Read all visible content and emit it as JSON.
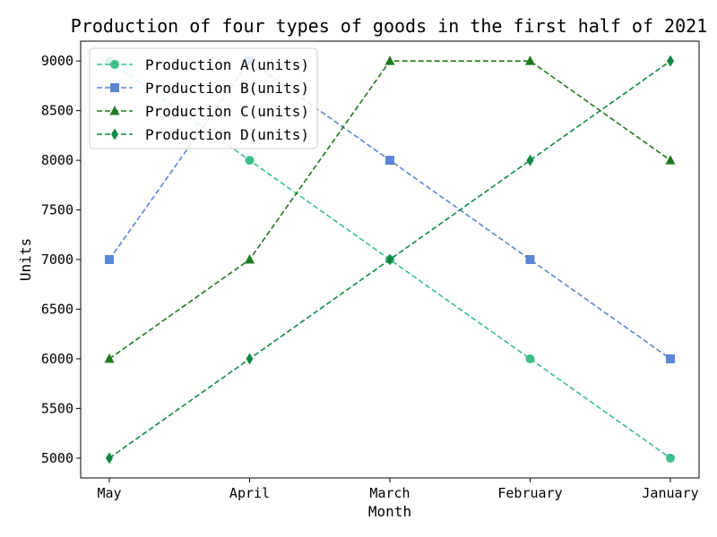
{
  "chart_data": {
    "type": "line",
    "title": "Production of four types of goods in the first half of 2021",
    "xlabel": "Month",
    "ylabel": "Units",
    "categories": [
      "May",
      "April",
      "March",
      "February",
      "January"
    ],
    "ylim": [
      4800,
      9200
    ],
    "yticks": [
      5000,
      5500,
      6000,
      6500,
      7000,
      7500,
      8000,
      8500,
      9000
    ],
    "grid": false,
    "legend_position": "upper-left",
    "series": [
      {
        "name": "Production A(units)",
        "values": [
          9000,
          8000,
          7000,
          6000,
          5000
        ],
        "color": "#3cbf8a",
        "marker": "circle",
        "line_style": "dashed"
      },
      {
        "name": "Production B(units)",
        "values": [
          7000,
          9000,
          8000,
          7000,
          6000
        ],
        "color": "#5b86d4",
        "marker": "square",
        "line_style": "dashed"
      },
      {
        "name": "Production C(units)",
        "values": [
          6000,
          7000,
          9000,
          9000,
          8000
        ],
        "color": "#1f7a1f",
        "marker": "triangle",
        "line_style": "dashed"
      },
      {
        "name": "Production D(units)",
        "values": [
          5000,
          6000,
          7000,
          8000,
          9000
        ],
        "color": "#0f8a45",
        "marker": "diamond",
        "line_style": "dashed"
      }
    ]
  }
}
